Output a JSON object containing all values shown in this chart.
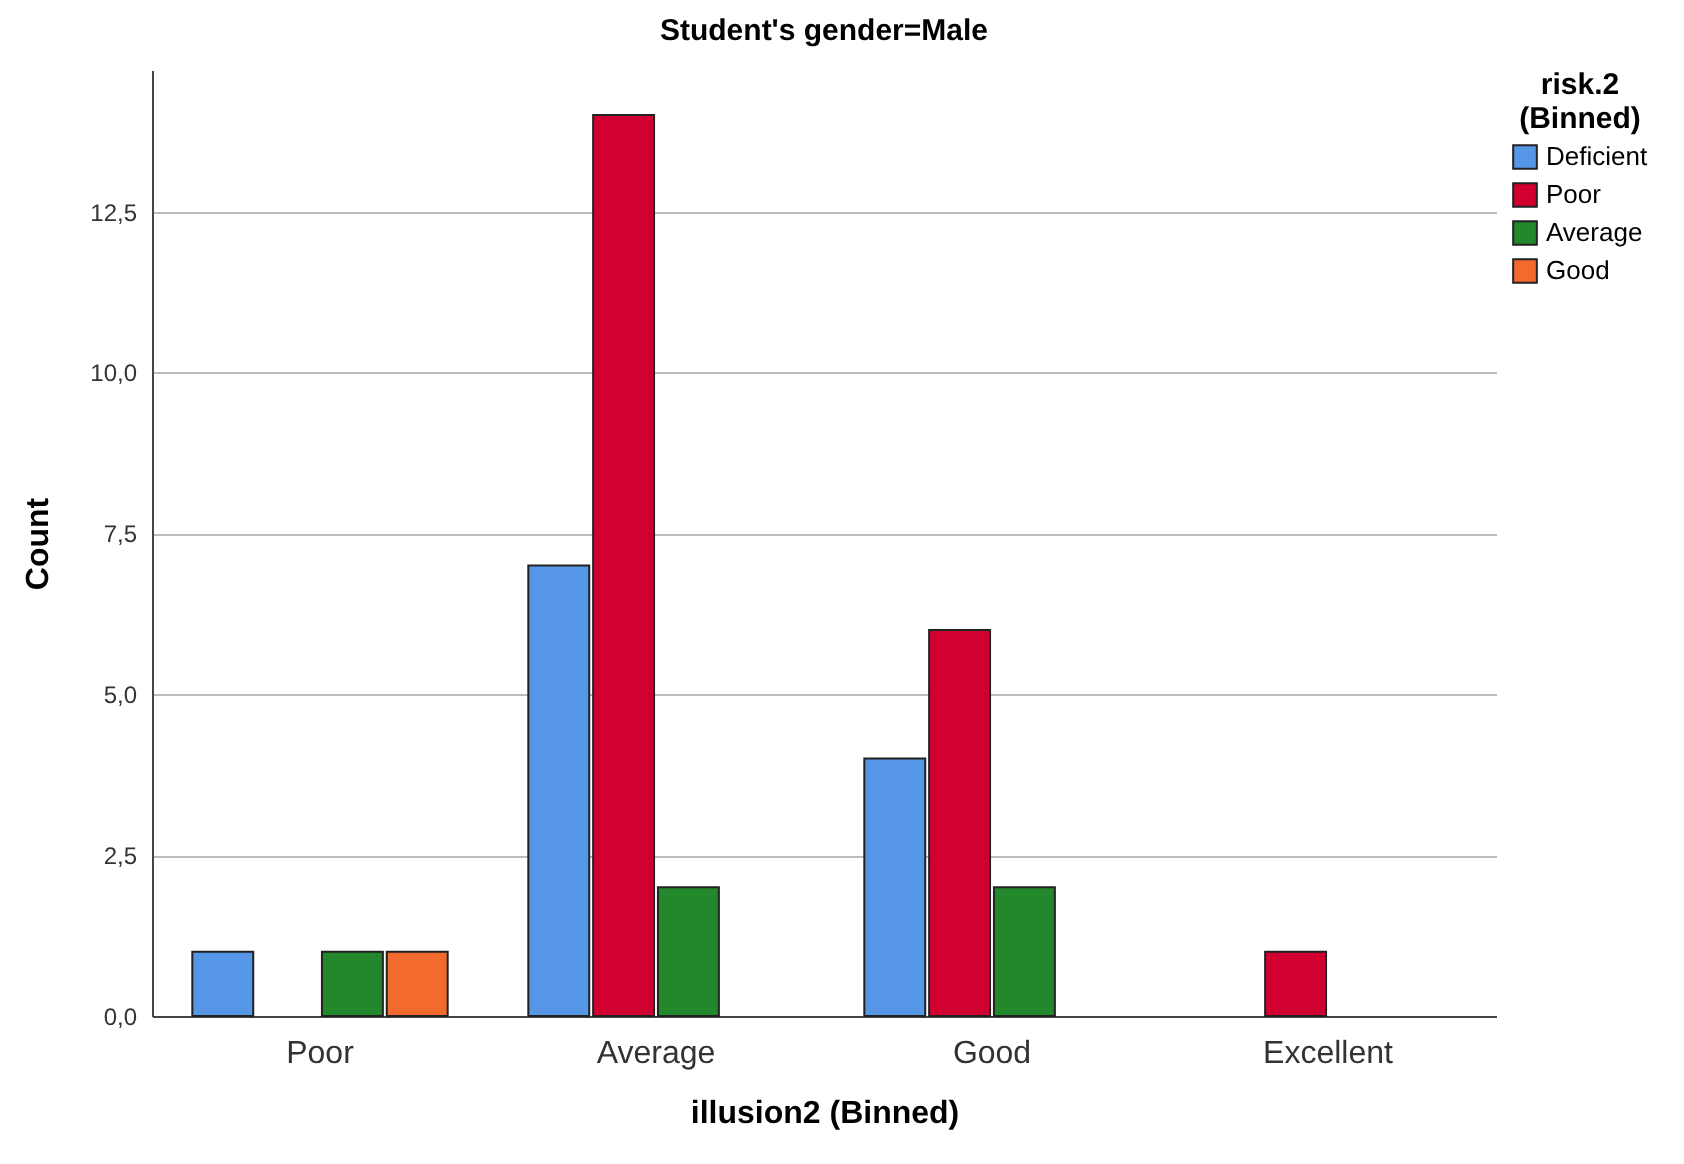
{
  "chart_data": {
    "type": "bar",
    "title": "Student's gender=Male",
    "xlabel": "illusion2 (Binned)",
    "ylabel": "Count",
    "legend_title": "risk.2 (Binned)",
    "categories": [
      "Poor",
      "Average",
      "Good",
      "Excellent"
    ],
    "series": [
      {
        "name": "Deficient",
        "color": "#5596e6",
        "values": [
          1,
          7,
          4,
          null
        ]
      },
      {
        "name": "Poor",
        "color": "#d10031",
        "values": [
          null,
          14,
          6,
          1
        ]
      },
      {
        "name": "Average",
        "color": "#23872b",
        "values": [
          1,
          2,
          2,
          null
        ]
      },
      {
        "name": "Good",
        "color": "#f26a2e",
        "values": [
          1,
          null,
          null,
          null
        ]
      }
    ],
    "ylim": [
      0,
      14.7
    ],
    "yticks": [
      {
        "value": 0,
        "label": "0,0"
      },
      {
        "value": 2.5,
        "label": "2,5"
      },
      {
        "value": 5,
        "label": "5,0"
      },
      {
        "value": 7.5,
        "label": "7,5"
      },
      {
        "value": 10,
        "label": "10,0"
      },
      {
        "value": 12.5,
        "label": "12,5"
      }
    ],
    "grid": "y",
    "legend": "top right"
  }
}
